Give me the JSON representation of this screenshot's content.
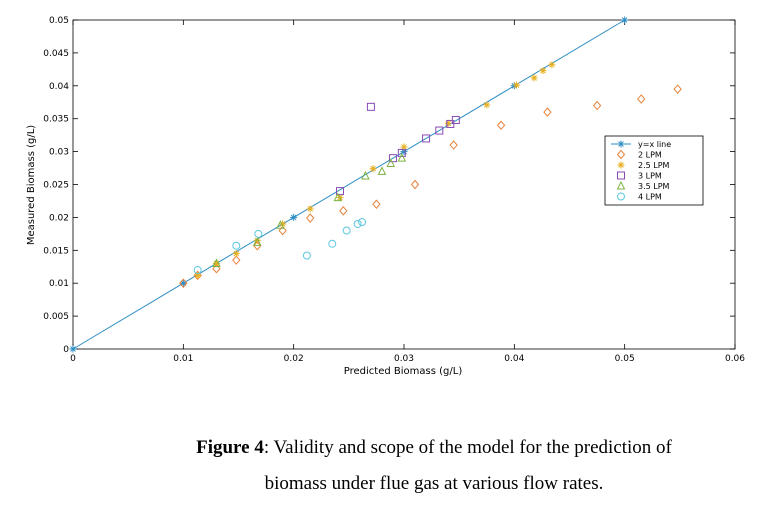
{
  "chart_data": {
    "type": "scatter",
    "title": "",
    "xlabel": "Predicted Biomass (g/L)",
    "ylabel": "Measured Biomass (g/L)",
    "xlim": [
      0,
      0.06
    ],
    "ylim": [
      0,
      0.05
    ],
    "xticks": [
      "0",
      "0.01",
      "0.02",
      "0.03",
      "0.04",
      "0.05",
      "0.06"
    ],
    "yticks": [
      "0",
      "0.005",
      "0.01",
      "0.015",
      "0.02",
      "0.025",
      "0.03",
      "0.035",
      "0.04",
      "0.045",
      "0.05"
    ],
    "grid": false,
    "legend_position": "right",
    "series": [
      {
        "name": "y=x line",
        "marker": "star",
        "line": true,
        "color": "#2b8cc4",
        "x": [
          0,
          0.01,
          0.02,
          0.03,
          0.04,
          0.05
        ],
        "y": [
          0,
          0.01,
          0.02,
          0.03,
          0.04,
          0.05
        ]
      },
      {
        "name": "2 LPM",
        "marker": "diamond",
        "color": "#e8823a",
        "x": [
          0.01,
          0.0113,
          0.013,
          0.0148,
          0.0167,
          0.019,
          0.0215,
          0.0245,
          0.0275,
          0.031,
          0.0345,
          0.0388,
          0.043,
          0.0475,
          0.0515,
          0.0548
        ],
        "y": [
          0.01,
          0.0112,
          0.0122,
          0.0135,
          0.0157,
          0.018,
          0.0199,
          0.021,
          0.022,
          0.025,
          0.031,
          0.034,
          0.036,
          0.037,
          0.038,
          0.0395
        ]
      },
      {
        "name": "2.5 LPM",
        "marker": "asterisk",
        "color": "#e8b020",
        "x": [
          0.0113,
          0.013,
          0.0148,
          0.0167,
          0.019,
          0.0215,
          0.0242,
          0.0272,
          0.03,
          0.034,
          0.0375,
          0.0402,
          0.0418,
          0.0426,
          0.0434
        ],
        "y": [
          0.0112,
          0.013,
          0.0145,
          0.0165,
          0.019,
          0.0213,
          0.023,
          0.0274,
          0.0307,
          0.0343,
          0.0371,
          0.0401,
          0.0412,
          0.0423,
          0.0432
        ],
        "note": "approx"
      },
      {
        "name": "3 LPM",
        "marker": "square",
        "color": "#8a4bb5",
        "x": [
          0.0242,
          0.027,
          0.029,
          0.0298,
          0.032,
          0.0332,
          0.0342,
          0.0347
        ],
        "y": [
          0.024,
          0.0368,
          0.029,
          0.0298,
          0.032,
          0.0332,
          0.0342,
          0.0348
        ]
      },
      {
        "name": "3.5 LPM",
        "marker": "triangle",
        "color": "#7cb342",
        "x": [
          0.013,
          0.0167,
          0.0188,
          0.024,
          0.0265,
          0.028,
          0.0288,
          0.0298
        ],
        "y": [
          0.013,
          0.0162,
          0.0188,
          0.023,
          0.0263,
          0.027,
          0.0282,
          0.029
        ]
      },
      {
        "name": "4 LPM",
        "marker": "circle",
        "color": "#5cc8e0",
        "x": [
          0.0113,
          0.0148,
          0.0168,
          0.0212,
          0.0235,
          0.0248,
          0.0258,
          0.0262
        ],
        "y": [
          0.012,
          0.0157,
          0.0175,
          0.0142,
          0.016,
          0.018,
          0.019,
          0.0193
        ]
      }
    ]
  },
  "caption": {
    "label": "Figure 4",
    "text_line1": ": Validity and scope of the model for the prediction of",
    "text_line2": "biomass under flue gas at various flow rates."
  }
}
